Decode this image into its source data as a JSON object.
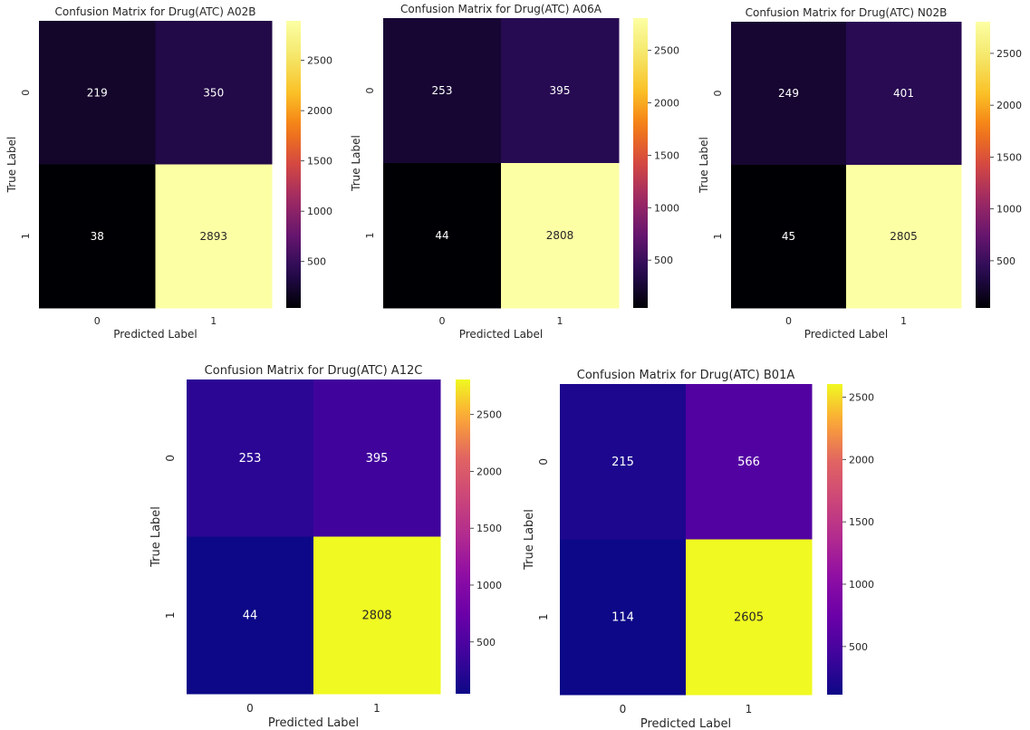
{
  "chart_data": [
    {
      "type": "heatmap",
      "title": "Confusion Matrix for Drug(ATC) A02B",
      "xlabel": "Predicted Label",
      "ylabel": "True Label",
      "x_categories": [
        "0",
        "1"
      ],
      "y_categories": [
        "0",
        "1"
      ],
      "values": [
        [
          219,
          350
        ],
        [
          38,
          2893
        ]
      ],
      "colormap": "inferno",
      "colorbar_ticks": [
        500,
        1000,
        1500,
        2000,
        2500
      ]
    },
    {
      "type": "heatmap",
      "title": "Confusion Matrix for Drug(ATC) A06A",
      "xlabel": "Predicted Label",
      "ylabel": "True Label",
      "x_categories": [
        "0",
        "1"
      ],
      "y_categories": [
        "0",
        "1"
      ],
      "values": [
        [
          253,
          395
        ],
        [
          44,
          2808
        ]
      ],
      "colormap": "inferno",
      "colorbar_ticks": [
        500,
        1000,
        1500,
        2000,
        2500
      ]
    },
    {
      "type": "heatmap",
      "title": "Confusion Matrix for Drug(ATC) N02B",
      "xlabel": "Predicted Label",
      "ylabel": "True Label",
      "x_categories": [
        "0",
        "1"
      ],
      "y_categories": [
        "0",
        "1"
      ],
      "values": [
        [
          249,
          401
        ],
        [
          45,
          2805
        ]
      ],
      "colormap": "inferno",
      "colorbar_ticks": [
        500,
        1000,
        1500,
        2000,
        2500
      ]
    },
    {
      "type": "heatmap",
      "title": "Confusion Matrix for Drug(ATC) A12C",
      "xlabel": "Predicted Label",
      "ylabel": "True Label",
      "x_categories": [
        "0",
        "1"
      ],
      "y_categories": [
        "0",
        "1"
      ],
      "values": [
        [
          253,
          395
        ],
        [
          44,
          2808
        ]
      ],
      "colormap": "plasma",
      "colorbar_ticks": [
        500,
        1000,
        1500,
        2000,
        2500
      ]
    },
    {
      "type": "heatmap",
      "title": "Confusion Matrix for Drug(ATC) B01A",
      "xlabel": "Predicted Label",
      "ylabel": "True Label",
      "x_categories": [
        "0",
        "1"
      ],
      "y_categories": [
        "0",
        "1"
      ],
      "values": [
        [
          215,
          566
        ],
        [
          114,
          2605
        ]
      ],
      "colormap": "plasma",
      "colorbar_ticks": [
        500,
        1000,
        1500,
        2000,
        2500
      ]
    }
  ]
}
